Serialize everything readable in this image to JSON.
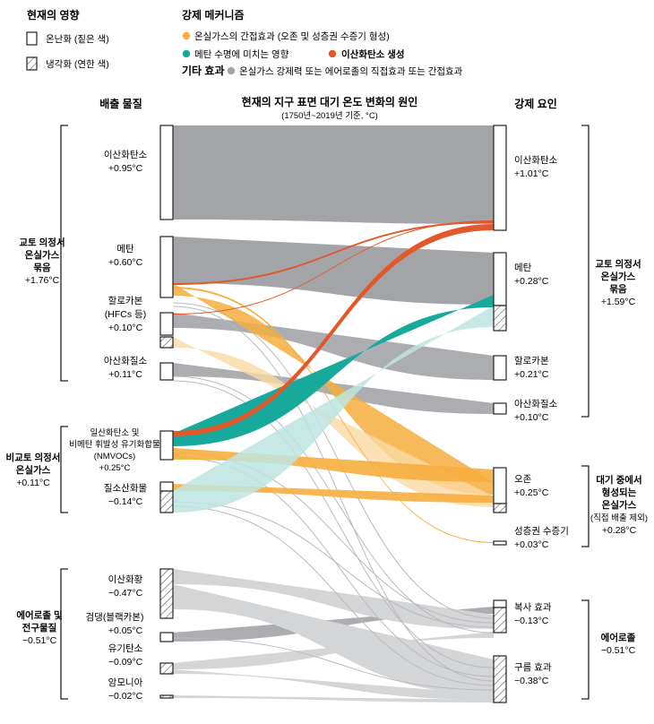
{
  "legend": {
    "effect_title": "현재의 영향",
    "warming": "온난화 (짙은 색)",
    "cooling": "냉각화 (연한 색)",
    "mechanism_title": "강제 메커니즘",
    "ozone_mech": "온실가스의 간접효과 (오존 및 성층권 수증기 형성)",
    "methane_mech": "메탄 수명에 미치는 영향",
    "co2_mech": "이산화탄소 생성",
    "other_title": "기타 효과",
    "other_mech": "온실가스 강제력 또는 에어로졸의 직접효과 또는 간접효과",
    "colors": {
      "ozone": "#f6ae3e",
      "methane": "#17a99b",
      "co2": "#e3582a",
      "other": "#a3a4a8"
    }
  },
  "headers": {
    "left": "배출 물질",
    "center": "현재의 지구 표면 대기 온도 변화의 원인",
    "center_sub": "(1750년~2019년 기준, °C)",
    "right": "강제 요인"
  },
  "left_groups": {
    "kyoto": [
      "교토 의정서",
      "온실가스",
      "묶음",
      "+1.76°C"
    ],
    "nonkyoto": [
      "비교토 의정서",
      "온실가스",
      "+0.11°C"
    ],
    "aerosol": [
      "에어로졸 및",
      "전구물질",
      "−0.51°C"
    ]
  },
  "right_groups": {
    "kyoto": [
      "교토 의정서",
      "온실가스",
      "묶음",
      "+1.59°C"
    ],
    "atmos": [
      "대기 중에서",
      "형성되는",
      "온실가스",
      "(직접 배출 제외)",
      "+0.28°C"
    ],
    "aerosol": [
      "에어로졸",
      "−0.51°C"
    ]
  },
  "emissions": {
    "co2": [
      "이산화탄소",
      "+0.95°C"
    ],
    "ch4": [
      "메탄",
      "+0.60°C"
    ],
    "hc": [
      "할로카본",
      "(HFCs 등)",
      "+0.10°C"
    ],
    "n2o": [
      "아산화질소",
      "+0.11°C"
    ],
    "co": [
      "일산화탄소 및",
      "비메탄 휘발성 유기화합물",
      "(NMVOCs)",
      "+0.25°C"
    ],
    "nox": [
      "질소산화물",
      "−0.14°C"
    ],
    "so2": [
      "이산화황",
      "−0.47°C"
    ],
    "bc": [
      "검댕(블랙카본)",
      "+0.05°C"
    ],
    "oc": [
      "유기탄소",
      "−0.09°C"
    ],
    "nh3": [
      "암모니아",
      "−0.02°C"
    ]
  },
  "drivers": {
    "co2": [
      "이산화탄소",
      "+1.01°C"
    ],
    "ch4": [
      "메탄",
      "+0.28°C"
    ],
    "hc": [
      "할로카본",
      "+0.21°C"
    ],
    "n2o": [
      "아산화질소",
      "+0.10°C"
    ],
    "o3": [
      "오존",
      "+0.25°C"
    ],
    "h2o": [
      "성층권 수증기",
      "+0.03°C"
    ],
    "rad": [
      "복사 효과",
      "−0.13°C"
    ],
    "cloud": [
      "구름 효과",
      "−0.38°C"
    ]
  }
}
